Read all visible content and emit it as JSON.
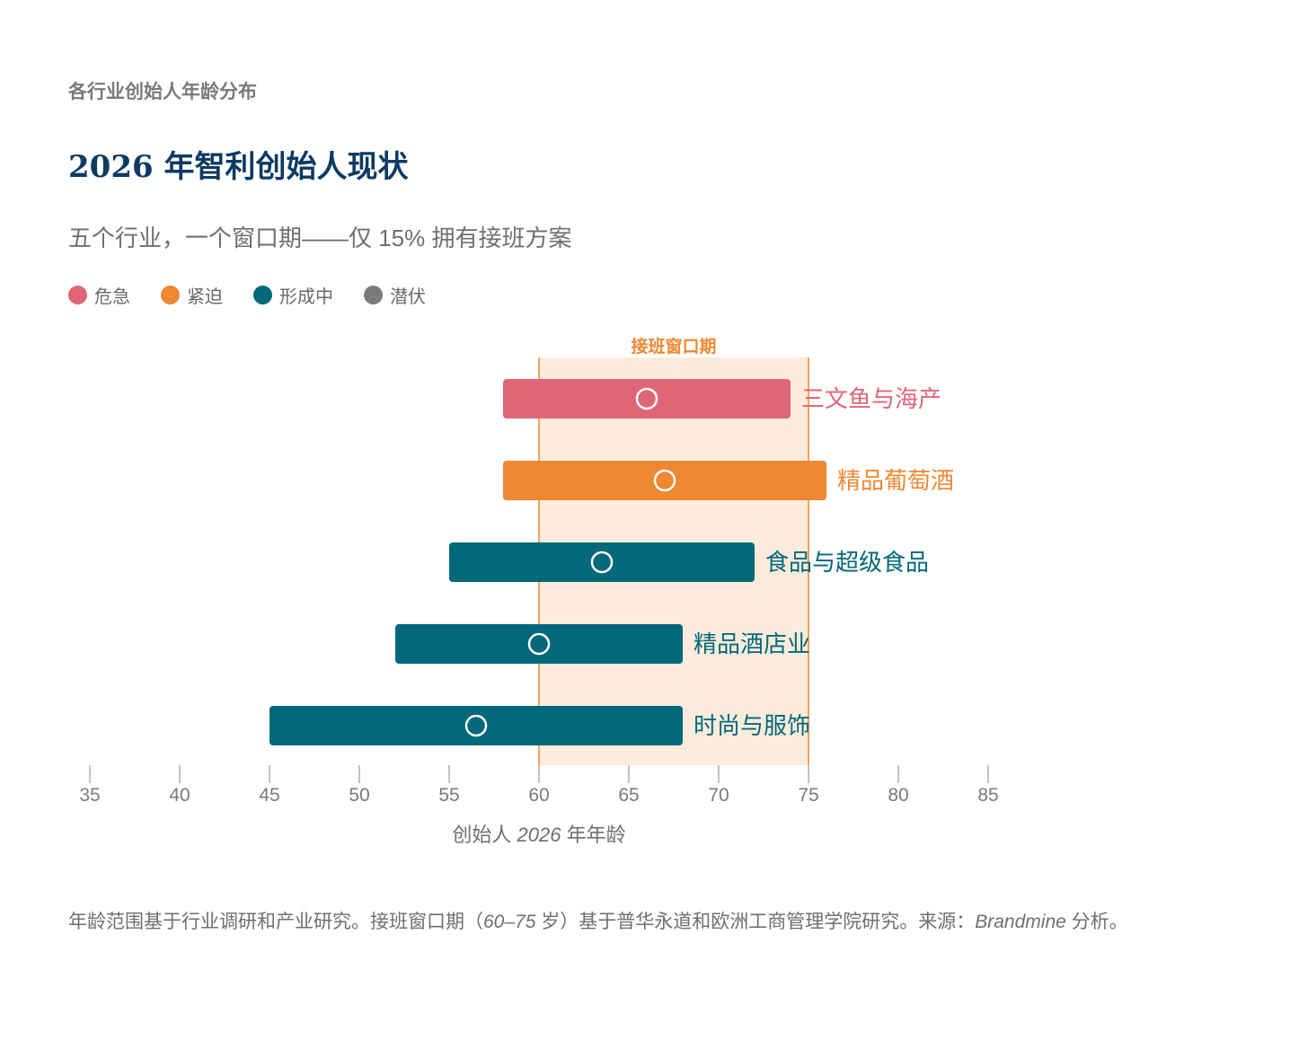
{
  "header": {
    "eyebrow": "各行业创始人年龄分布",
    "title": "2026 年智利创始人现状",
    "subtitle": "五个行业，一个窗口期——仅 15% 拥有接班方案"
  },
  "legend": [
    {
      "label": "危急",
      "color": "#e06677"
    },
    {
      "label": "紧迫",
      "color": "#ee8833"
    },
    {
      "label": "形成中",
      "color": "#02687a"
    },
    {
      "label": "潜伏",
      "color": "#7b7b7b"
    }
  ],
  "chart_data": {
    "type": "bar",
    "orientation": "horizontal-range",
    "title": "2026 年智利创始人现状",
    "subtitle": "五个行业，一个窗口期——仅 15% 拥有接班方案",
    "xlabel": "创始人 2026 年年龄",
    "xlabel_parts": {
      "pre": "创始人 ",
      "italic": "2026",
      "post": " 年年龄"
    },
    "xlim": [
      35,
      85
    ],
    "xticks": [
      35,
      40,
      45,
      50,
      55,
      60,
      65,
      70,
      75,
      80,
      85
    ],
    "window": {
      "label": "接班窗口期",
      "start": 60,
      "end": 75,
      "color": "#ee8833",
      "fill": "#fdebdc"
    },
    "categories": [
      "三文鱼与海产",
      "精品葡萄酒",
      "食品与超级食品",
      "精品酒店业",
      "时尚与服饰"
    ],
    "series": [
      {
        "category": "三文鱼与海产",
        "start": 58,
        "end": 74,
        "median": 66,
        "status": "危急",
        "color": "#e06677"
      },
      {
        "category": "精品葡萄酒",
        "start": 58,
        "end": 76,
        "median": 67,
        "status": "紧迫",
        "color": "#ee8833"
      },
      {
        "category": "食品与超级食品",
        "start": 55,
        "end": 72,
        "median": 63.5,
        "status": "形成中",
        "color": "#02687a"
      },
      {
        "category": "精品酒店业",
        "start": 52,
        "end": 68,
        "median": 60,
        "status": "形成中",
        "color": "#02687a"
      },
      {
        "category": "时尚与服饰",
        "start": 45,
        "end": 68,
        "median": 56.5,
        "status": "形成中",
        "color": "#02687a"
      }
    ],
    "grid": false,
    "legend_position": "top-left"
  },
  "footnote": {
    "part1": "年龄范围基于行业调研和产业研究。接班窗口期（",
    "range": "60–75",
    "part2": " 岁）基于普华永道和欧洲工商管理学院研究。来源：",
    "source": "Brandmine",
    "part3": " 分析。"
  }
}
